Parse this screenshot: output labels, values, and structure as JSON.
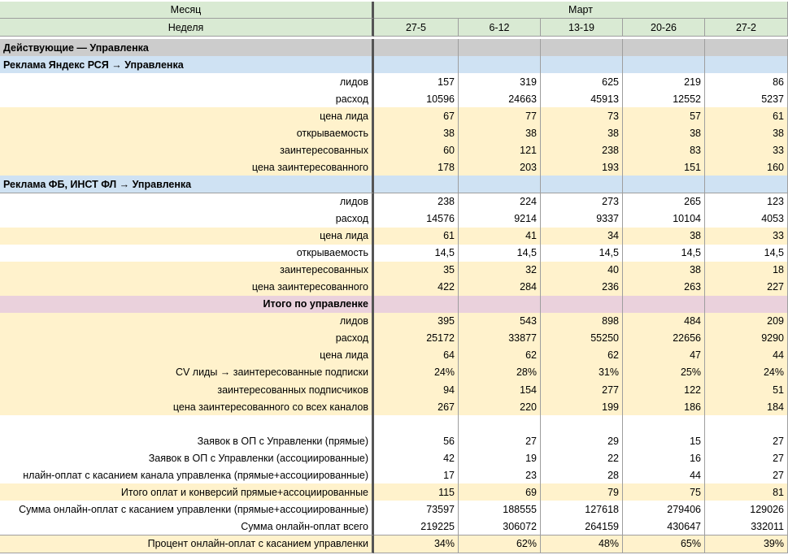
{
  "header": {
    "month_label": "Месяц",
    "month_value": "Март",
    "week_label": "Неделя",
    "weeks": [
      "27-5",
      "6-12",
      "13-19",
      "20-26",
      "27-2"
    ]
  },
  "rows": [
    {
      "type": "section",
      "style": "gray",
      "label": "Действующие — Управленка",
      "align": "left",
      "values": [
        "",
        "",
        "",
        "",
        ""
      ]
    },
    {
      "type": "section",
      "style": "blue",
      "label": "Реклама Яндекс РСЯ → Управленка",
      "align": "left",
      "values": [
        "",
        "",
        "",
        "",
        ""
      ]
    },
    {
      "type": "data",
      "style": "white",
      "label": "лидов",
      "values": [
        "157",
        "319",
        "625",
        "219",
        "86"
      ]
    },
    {
      "type": "data",
      "style": "white",
      "label": "расход",
      "values": [
        "10596",
        "24663",
        "45913",
        "12552",
        "5237"
      ]
    },
    {
      "type": "data",
      "style": "yellow",
      "label": "цена лида",
      "values": [
        "67",
        "77",
        "73",
        "57",
        "61"
      ]
    },
    {
      "type": "data",
      "style": "yellow",
      "label": "открываемость",
      "values": [
        "38",
        "38",
        "38",
        "38",
        "38"
      ]
    },
    {
      "type": "data",
      "style": "yellow",
      "label": "заинтересованных",
      "values": [
        "60",
        "121",
        "238",
        "83",
        "33"
      ]
    },
    {
      "type": "data",
      "style": "yellow",
      "label": "цена заинтересованного",
      "values": [
        "178",
        "203",
        "193",
        "151",
        "160"
      ]
    },
    {
      "type": "section",
      "style": "blue",
      "label": "Реклама ФБ, ИНСТ ФЛ → Управленка",
      "align": "left",
      "values": [
        "",
        "",
        "",
        "",
        ""
      ]
    },
    {
      "type": "data",
      "style": "white",
      "label": "лидов",
      "values": [
        "238",
        "224",
        "273",
        "265",
        "123"
      ]
    },
    {
      "type": "data",
      "style": "white",
      "label": "расход",
      "values": [
        "14576",
        "9214",
        "9337",
        "10104",
        "4053"
      ]
    },
    {
      "type": "data",
      "style": "yellow",
      "label": "цена лида",
      "values": [
        "61",
        "41",
        "34",
        "38",
        "33"
      ]
    },
    {
      "type": "data",
      "style": "white",
      "label": "открываемость",
      "values": [
        "14,5",
        "14,5",
        "14,5",
        "14,5",
        "14,5"
      ]
    },
    {
      "type": "data",
      "style": "yellow",
      "label": "заинтересованных",
      "values": [
        "35",
        "32",
        "40",
        "38",
        "18"
      ]
    },
    {
      "type": "data",
      "style": "yellow",
      "label": "цена заинтересованного",
      "values": [
        "422",
        "284",
        "236",
        "263",
        "227"
      ]
    },
    {
      "type": "section",
      "style": "pink",
      "label": "Итого по управленке",
      "align": "right",
      "values": [
        "",
        "",
        "",
        "",
        ""
      ]
    },
    {
      "type": "data",
      "style": "yellow",
      "label": "лидов",
      "values": [
        "395",
        "543",
        "898",
        "484",
        "209"
      ]
    },
    {
      "type": "data",
      "style": "yellow",
      "label": "расход",
      "values": [
        "25172",
        "33877",
        "55250",
        "22656",
        "9290"
      ]
    },
    {
      "type": "data",
      "style": "yellow",
      "label": "цена лида",
      "values": [
        "64",
        "62",
        "62",
        "47",
        "44"
      ]
    },
    {
      "type": "data",
      "style": "yellow",
      "label": "CV лиды → заинтересованные подписки",
      "values": [
        "24%",
        "28%",
        "31%",
        "25%",
        "24%"
      ]
    },
    {
      "type": "data",
      "style": "yellow",
      "label": "заинтересованных подписчиков",
      "values": [
        "94",
        "154",
        "277",
        "122",
        "51"
      ]
    },
    {
      "type": "data",
      "style": "yellow",
      "label": "цена заинтересованного со всех каналов",
      "values": [
        "267",
        "220",
        "199",
        "186",
        "184"
      ]
    },
    {
      "type": "blank",
      "style": "white",
      "label": "",
      "values": [
        "",
        "",
        "",
        "",
        ""
      ]
    },
    {
      "type": "data",
      "style": "white",
      "label": "Заявок в ОП с Управленки (прямые)",
      "values": [
        "56",
        "27",
        "29",
        "15",
        "27"
      ]
    },
    {
      "type": "data",
      "style": "white",
      "label": "Заявок в ОП с Управленки (ассоциированные)",
      "values": [
        "42",
        "19",
        "22",
        "16",
        "27"
      ]
    },
    {
      "type": "data",
      "style": "white",
      "label": "нлайн-оплат с касанием канала управленка (прямые+ассоциированные)",
      "values": [
        "17",
        "23",
        "28",
        "44",
        "27"
      ]
    },
    {
      "type": "data",
      "style": "yellow",
      "label": "Итого оплат и конверсий прямые+ассоциированные",
      "values": [
        "115",
        "69",
        "79",
        "75",
        "81"
      ]
    },
    {
      "type": "data",
      "style": "white",
      "label": "Сумма онлайн-оплат с касанием управленки (прямые+ассоциированные)",
      "values": [
        "73597",
        "188555",
        "127618",
        "279406",
        "129026"
      ]
    },
    {
      "type": "data",
      "style": "white",
      "label": "Сумма онлайн-оплат всего",
      "values": [
        "219225",
        "306072",
        "264159",
        "430647",
        "332011"
      ]
    },
    {
      "type": "data",
      "style": "yellow",
      "label": "Процент онлайн-оплат с касанием управленки",
      "values": [
        "34%",
        "62%",
        "48%",
        "65%",
        "39%"
      ]
    }
  ]
}
